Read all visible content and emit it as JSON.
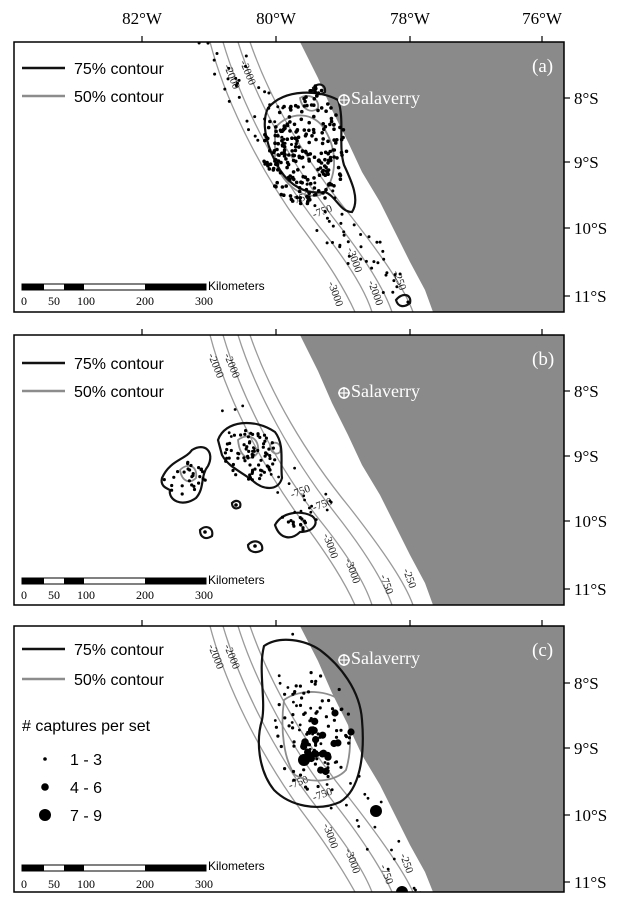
{
  "longitude_labels": [
    "82°W",
    "80°W",
    "78°W",
    "76°W"
  ],
  "latitude_labels": {
    "a": [
      "8°S",
      "9°S",
      "10°S",
      "11°S"
    ],
    "b": [
      "8°S",
      "9°S",
      "10°S",
      "11°S"
    ],
    "c": [
      "8°S",
      "9°S",
      "10°S",
      "11°S"
    ]
  },
  "place_label": "Salaverry",
  "legend": {
    "contour_75": "75% contour",
    "contour_50": "50% contour",
    "captures_title": "# captures per set",
    "captures_classes": [
      "1 - 3",
      "4 - 6",
      "7 - 9"
    ]
  },
  "scalebar": {
    "unit": "Kilometers",
    "ticks": [
      "0",
      "50",
      "100",
      "200",
      "300"
    ]
  },
  "panels": [
    {
      "tag": "(a)"
    },
    {
      "tag": "(b)"
    },
    {
      "tag": "(c)"
    }
  ],
  "depth_labels": {
    "a": [
      "-2000",
      "-2000",
      "-750",
      "-750",
      "-3000",
      "-3000",
      "-2000",
      "-250"
    ],
    "b": [
      "-2000",
      "-2000",
      "-750",
      "-750",
      "-3000",
      "-3000",
      "-750",
      "-250"
    ],
    "c": [
      "-2000",
      "-2000",
      "-750",
      "-750",
      "-3000",
      "-3000",
      "-750",
      "-250"
    ]
  },
  "colors": {
    "land": "#8a8a8a",
    "contour_75": "#111111",
    "contour_50": "#8c8c8c",
    "bathymetry": "#9a9a9a",
    "points": "#000000"
  }
}
